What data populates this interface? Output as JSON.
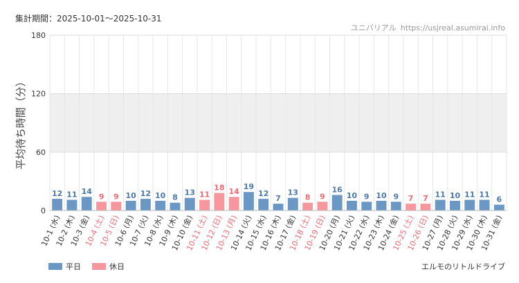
{
  "header": {
    "period_label": "集計期間：2025-10-01～2025-10-31",
    "source_name": "ユニバリアル",
    "source_url": "https://usjreal.asumirai.info"
  },
  "footer": {
    "attraction_name": "エルモのリトルドライブ"
  },
  "legend": [
    {
      "label": "平日",
      "color": "#6b97c5"
    },
    {
      "label": "休日",
      "color": "#f5979d"
    }
  ],
  "colors": {
    "weekday_bar": "#6b97c5",
    "holiday_bar": "#f5979d",
    "weekday_label": "#4a78aa",
    "holiday_label": "#ee6a71",
    "weekday_tick": "#333333",
    "holiday_tick": "#ee6a71",
    "band": "#efefef"
  },
  "chart_data": {
    "type": "bar",
    "title": "",
    "xlabel": "",
    "ylabel": "平均待ち時間（分）",
    "ylim": [
      0,
      180
    ],
    "yticks": [
      0,
      60,
      120,
      180
    ],
    "grid": true,
    "shaded_band": [
      60,
      120
    ],
    "legend_placement": "bottom-left",
    "categories": [
      "10-1 (水)",
      "10-2 (木)",
      "10-3 (金)",
      "10-4 (土)",
      "10-5 (日)",
      "10-6 (月)",
      "10-7 (火)",
      "10-8 (水)",
      "10-9 (木)",
      "10-10 (金)",
      "10-11 (土)",
      "10-12 (日)",
      "10-13 (月)",
      "10-14 (火)",
      "10-15 (水)",
      "10-16 (木)",
      "10-17 (金)",
      "10-18 (土)",
      "10-19 (日)",
      "10-20 (月)",
      "10-21 (火)",
      "10-22 (水)",
      "10-23 (木)",
      "10-24 (金)",
      "10-25 (土)",
      "10-26 (日)",
      "10-27 (月)",
      "10-28 (火)",
      "10-29 (水)",
      "10-30 (木)",
      "10-31 (金)"
    ],
    "values": [
      12,
      11,
      14,
      9,
      9,
      10,
      12,
      10,
      8,
      13,
      11,
      18,
      14,
      19,
      12,
      7,
      13,
      8,
      9,
      16,
      10,
      9,
      10,
      9,
      7,
      7,
      11,
      10,
      11,
      11,
      6
    ],
    "holiday": [
      false,
      false,
      false,
      true,
      true,
      false,
      false,
      false,
      false,
      false,
      true,
      true,
      true,
      false,
      false,
      false,
      false,
      true,
      true,
      false,
      false,
      false,
      false,
      false,
      true,
      true,
      false,
      false,
      false,
      false,
      false
    ],
    "series": [
      {
        "name": "平日"
      },
      {
        "name": "休日"
      }
    ]
  }
}
